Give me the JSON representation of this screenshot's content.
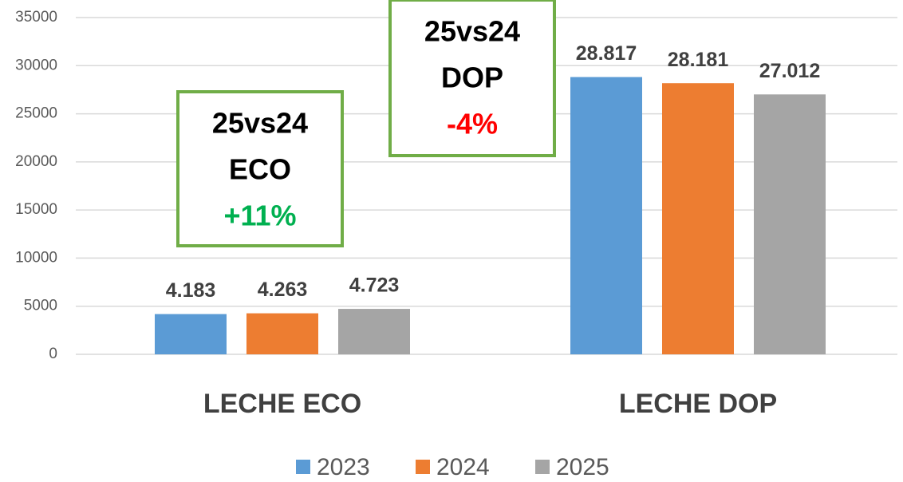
{
  "chart_data": {
    "type": "bar",
    "categories": [
      "LECHE ECO",
      "LECHE DOP"
    ],
    "series": [
      {
        "name": "2023",
        "color": "#5b9bd5",
        "values": [
          4183,
          28817
        ],
        "value_labels": [
          "4.183",
          "28.817"
        ]
      },
      {
        "name": "2024",
        "color": "#ed7d31",
        "values": [
          4263,
          28181
        ],
        "value_labels": [
          "4.263",
          "28.181"
        ]
      },
      {
        "name": "2025",
        "color": "#a5a5a5",
        "values": [
          4723,
          27012
        ],
        "value_labels": [
          "4.723",
          "27.012"
        ]
      }
    ],
    "ylim": [
      0,
      35000
    ],
    "yticks": [
      0,
      5000,
      10000,
      15000,
      20000,
      25000,
      30000,
      35000
    ],
    "grid": true,
    "legend": "bottom",
    "annotations": [
      {
        "lines": [
          "25vs24",
          "ECO"
        ],
        "highlight": "+11%",
        "highlight_color": "#00b050",
        "border_color": "#70ad47"
      },
      {
        "lines": [
          "25vs24",
          "DOP"
        ],
        "highlight": "-4%",
        "highlight_color": "#ff0000",
        "border_color": "#70ad47"
      }
    ]
  }
}
